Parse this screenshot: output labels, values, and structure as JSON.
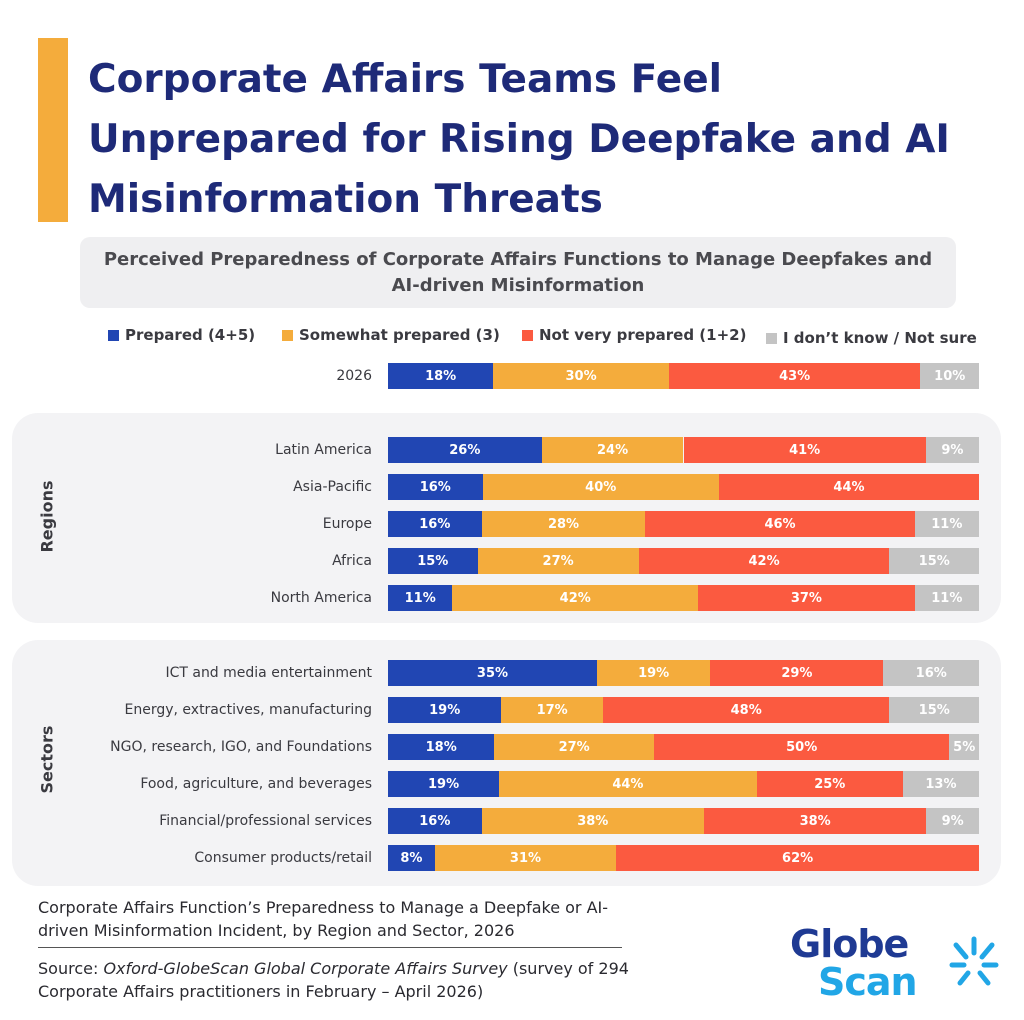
{
  "title": "Corporate Affairs Teams Feel Unprepared for Rising Deepfake and AI Misinformation Threats",
  "colors": {
    "accent": "#f4ac3c",
    "title": "#1e2a78",
    "prepared": "#2146b3",
    "somewhat": "#f4ac3c",
    "not_very": "#fb5a40",
    "dont_know": "#c4c4c4",
    "logo_blue": "#1f3a93",
    "logo_cyan": "#21a6e6"
  },
  "chart_data": {
    "type": "bar",
    "orientation": "horizontal-stacked-100",
    "title": "Perceived Preparedness of Corporate Affairs Functions to Manage Deepfakes and AI-driven Misinformation",
    "legend_position": "top",
    "series": [
      {
        "key": "prepared",
        "name": "Prepared (4+5)"
      },
      {
        "key": "somewhat",
        "name": "Somewhat prepared (3)"
      },
      {
        "key": "not_very",
        "name": "Not very prepared (1+2)"
      },
      {
        "key": "dont_know",
        "name": "I don’t know / Not sure"
      }
    ],
    "total": {
      "label": "2026",
      "values": [
        18,
        30,
        43,
        10
      ]
    },
    "groups": [
      {
        "name": "Regions",
        "rows": [
          {
            "label": "Latin America",
            "values": [
              26,
              24,
              41,
              9
            ]
          },
          {
            "label": "Asia-Pacific",
            "values": [
              16,
              40,
              44,
              0
            ]
          },
          {
            "label": "Europe",
            "values": [
              16,
              28,
              46,
              11
            ]
          },
          {
            "label": "Africa",
            "values": [
              15,
              27,
              42,
              15
            ]
          },
          {
            "label": "North America",
            "values": [
              11,
              42,
              37,
              11
            ]
          }
        ]
      },
      {
        "name": "Sectors",
        "rows": [
          {
            "label": "ICT and media entertainment",
            "values": [
              35,
              19,
              29,
              16
            ]
          },
          {
            "label": "Energy, extractives, manufacturing",
            "values": [
              19,
              17,
              48,
              15
            ]
          },
          {
            "label": "NGO, research, IGO, and Foundations",
            "values": [
              18,
              27,
              50,
              5
            ]
          },
          {
            "label": "Food, agriculture, and beverages",
            "values": [
              19,
              44,
              25,
              13
            ]
          },
          {
            "label": "Financial/professional services",
            "values": [
              16,
              38,
              38,
              9
            ]
          },
          {
            "label": "Consumer products/retail",
            "values": [
              8,
              31,
              62,
              0
            ]
          }
        ]
      }
    ]
  },
  "footnote": "Corporate Affairs Function’s Preparedness to Manage a Deepfake or AI-driven Misinformation Incident, by Region and Sector, 2026",
  "source": {
    "prefix": "Source: ",
    "survey_name": "Oxford-GlobeScan Global Corporate Affairs Survey",
    "suffix": " (survey of 294 Corporate Affairs practitioners in February – April 2026)"
  },
  "logo": {
    "line1": "Globe",
    "line2": "Scan",
    "icon": "starburst-icon"
  }
}
